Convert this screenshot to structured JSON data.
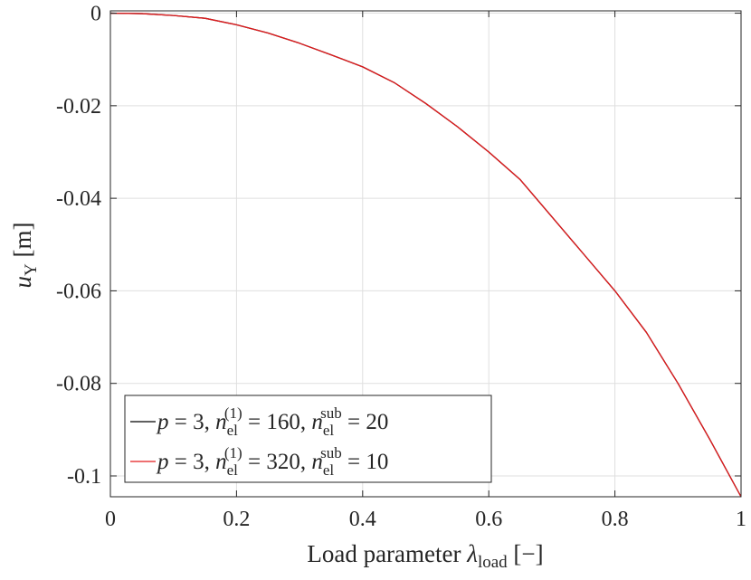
{
  "chart_data": {
    "type": "line",
    "xlabel": "Load parameter λload [−]",
    "ylabel": "uY [m]",
    "xlim": [
      0,
      1
    ],
    "ylim": [
      -0.1045,
      0.0005
    ],
    "grid": true,
    "legend_placement": "bottom-left",
    "xticks": [
      {
        "value": 0,
        "label": "0"
      },
      {
        "value": 0.2,
        "label": "0.2"
      },
      {
        "value": 0.4,
        "label": "0.4"
      },
      {
        "value": 0.6,
        "label": "0.6"
      },
      {
        "value": 0.8,
        "label": "0.8"
      },
      {
        "value": 1,
        "label": "1"
      }
    ],
    "yticks": [
      {
        "value": 0,
        "label": "0"
      },
      {
        "value": -0.02,
        "label": "-0.02"
      },
      {
        "value": -0.04,
        "label": "-0.04"
      },
      {
        "value": -0.06,
        "label": "-0.06"
      },
      {
        "value": -0.08,
        "label": "-0.08"
      },
      {
        "value": -0.1,
        "label": "-0.1"
      }
    ],
    "series": [
      {
        "name": "p = 3, n_el^(1) = 160, n_el^sub = 20",
        "color": "#000000",
        "x": [
          0,
          0.05,
          0.1,
          0.15,
          0.2,
          0.25,
          0.3,
          0.35,
          0.4,
          0.45,
          0.5,
          0.55,
          0.6,
          0.65,
          0.7,
          0.75,
          0.8,
          0.85,
          0.9,
          0.95,
          1.0
        ],
        "y": [
          0,
          -0.0001,
          -0.0005,
          -0.0011,
          -0.0025,
          -0.0043,
          -0.0065,
          -0.009,
          -0.0116,
          -0.015,
          -0.0195,
          -0.0245,
          -0.03,
          -0.036,
          -0.044,
          -0.052,
          -0.06,
          -0.069,
          -0.08,
          -0.092,
          -0.1045
        ]
      },
      {
        "name": "p = 3, n_el^(1) = 320, n_el^sub = 10",
        "color": "#e31a1c",
        "x": [
          0,
          0.05,
          0.1,
          0.15,
          0.2,
          0.25,
          0.3,
          0.35,
          0.4,
          0.45,
          0.5,
          0.55,
          0.6,
          0.65,
          0.7,
          0.75,
          0.8,
          0.85,
          0.9,
          0.95,
          1.0
        ],
        "y": [
          0,
          -0.0001,
          -0.0005,
          -0.0011,
          -0.0025,
          -0.0043,
          -0.0065,
          -0.009,
          -0.0116,
          -0.015,
          -0.0195,
          -0.0245,
          -0.03,
          -0.036,
          -0.044,
          -0.052,
          -0.06,
          -0.069,
          -0.08,
          -0.092,
          -0.1045
        ]
      }
    ],
    "legend_entries": [
      {
        "p": "p",
        "eq": " = 3, ",
        "n": "n",
        "sub": "el",
        "sup": "(1)",
        "eq2": " = 160, ",
        "n2": "n",
        "sub2": "el",
        "sup2": "sub",
        "eq3": " = 20"
      },
      {
        "p": "p",
        "eq": " = 3, ",
        "n": "n",
        "sub": "el",
        "sup": "(1)",
        "eq2": " = 320, ",
        "n2": "n",
        "sub2": "el",
        "sup2": "sub",
        "eq3": " = 10"
      }
    ],
    "xlabel_parts": {
      "text": "Load parameter ",
      "lambda": "λ",
      "sub": "load",
      "unit": " [−]"
    },
    "ylabel_parts": {
      "u": "u",
      "sub": "Y",
      "unit": " [m]"
    }
  }
}
